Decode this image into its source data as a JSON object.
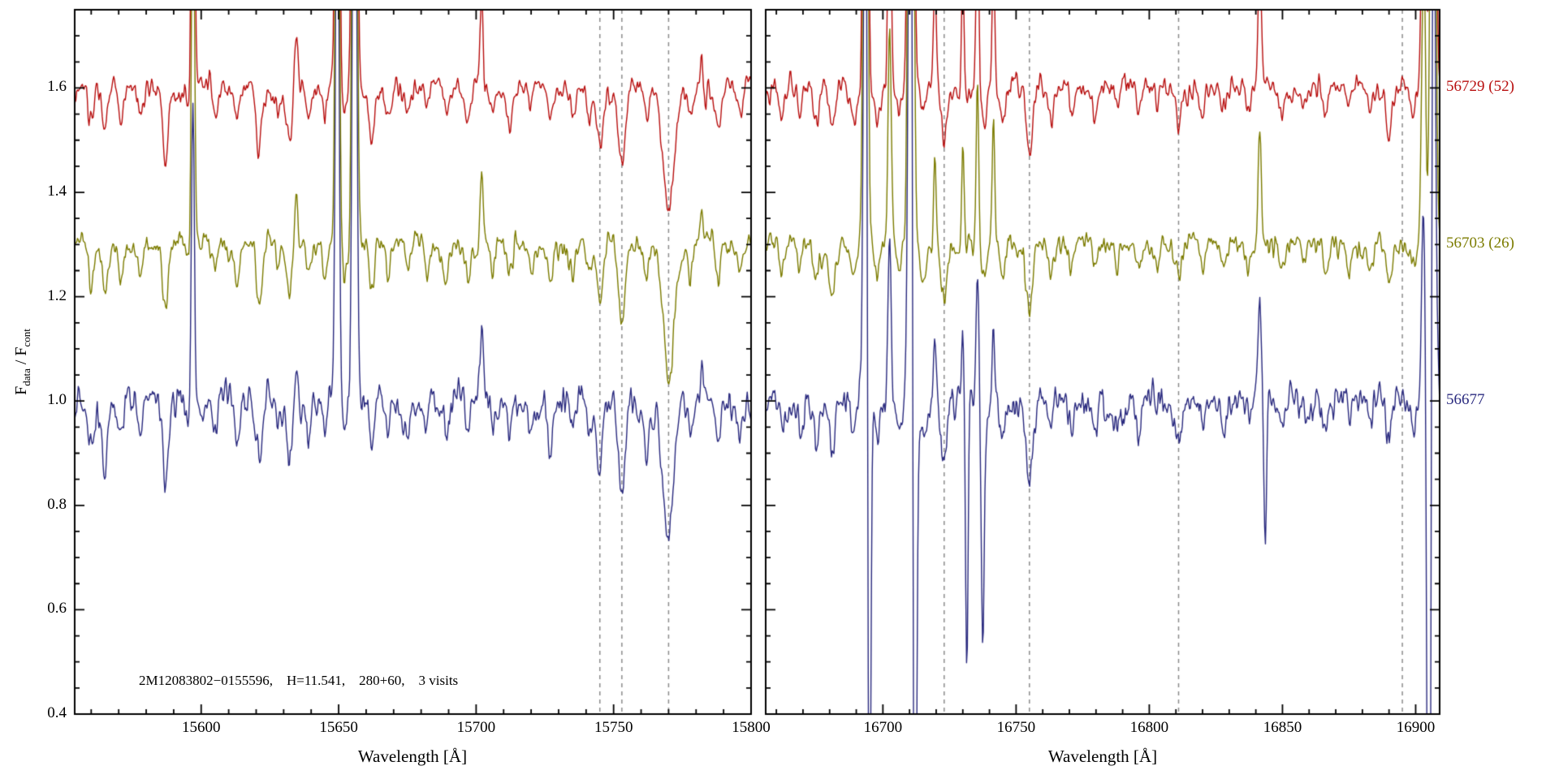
{
  "chart_data": {
    "type": "line",
    "title": "",
    "ylabel": "F_data / F_cont",
    "ylabel_parts": {
      "f1": "F",
      "sub1": "data",
      "sep": " / ",
      "f2": "F",
      "sub2": "cont"
    },
    "ylim": [
      0.4,
      1.75
    ],
    "ytick_values": [
      0.4,
      0.6,
      0.8,
      1.0,
      1.2,
      1.4,
      1.6
    ],
    "ytick_labels": [
      "0.4",
      "0.6",
      "0.8",
      "1.0",
      "1.2",
      "1.4",
      "1.6"
    ],
    "annotation": "2M12083802−0155596,    H=11.541,    280+60,    3 visits",
    "frame_color": "#000000",
    "dash_color": "#8c8c8c",
    "series": [
      {
        "label": "56729 (52)",
        "color": "#b80f0f",
        "offset": 1.6,
        "noise": 0.013,
        "line_scale": 0.95,
        "sky_scale": 1.0,
        "sky_negative": false
      },
      {
        "label": "56703 (26)",
        "color": "#7c7c00",
        "offset": 1.3,
        "noise": 0.013,
        "line_scale": 1.0,
        "sky_scale": 0.9,
        "sky_negative": false
      },
      {
        "label": "56677",
        "color": "#2a2a7f",
        "offset": 1.0,
        "noise": 0.02,
        "line_scale": 1.1,
        "sky_scale": 0.7,
        "sky_negative": true
      }
    ],
    "panels": [
      {
        "id": "left",
        "xlabel": "Wavelength [Å]",
        "xlim": [
          15554,
          15800
        ],
        "xtick_values": [
          15600,
          15650,
          15700,
          15750,
          15800
        ],
        "xtick_labels": [
          "15600",
          "15650",
          "15700",
          "15750",
          "15800"
        ],
        "minor_step": 10,
        "dashed_lines": [
          15745,
          15753,
          15770
        ],
        "absorption_lines": [
          [
            15560,
            0.08,
            0.9
          ],
          [
            15565,
            0.1,
            1.0
          ],
          [
            15571,
            0.07,
            0.8
          ],
          [
            15578,
            0.05,
            0.8
          ],
          [
            15587,
            0.13,
            1.1
          ],
          [
            15596,
            0.06,
            0.8
          ],
          [
            15605,
            0.06,
            0.8
          ],
          [
            15613,
            0.07,
            0.9
          ],
          [
            15621,
            0.11,
            1.0
          ],
          [
            15628,
            0.05,
            0.8
          ],
          [
            15632,
            0.1,
            1.0
          ],
          [
            15639,
            0.06,
            0.8
          ],
          [
            15645,
            0.06,
            0.8
          ],
          [
            15652,
            0.05,
            0.8
          ],
          [
            15662,
            0.09,
            0.9
          ],
          [
            15668,
            0.06,
            0.8
          ],
          [
            15675,
            0.05,
            0.8
          ],
          [
            15682,
            0.05,
            0.8
          ],
          [
            15689,
            0.06,
            0.9
          ],
          [
            15697,
            0.07,
            0.9
          ],
          [
            15706,
            0.05,
            0.8
          ],
          [
            15712,
            0.06,
            0.9
          ],
          [
            15720,
            0.05,
            0.8
          ],
          [
            15727,
            0.07,
            0.9
          ],
          [
            15735,
            0.05,
            0.8
          ],
          [
            15741,
            0.06,
            0.9
          ],
          [
            15745,
            0.12,
            1.1
          ],
          [
            15753,
            0.16,
            1.2
          ],
          [
            15762,
            0.07,
            0.9
          ],
          [
            15770,
            0.24,
            2.0
          ],
          [
            15778,
            0.06,
            0.9
          ],
          [
            15788,
            0.07,
            0.9
          ],
          [
            15796,
            0.06,
            0.9
          ]
        ],
        "emission_lines": [
          [
            15597,
            0.9,
            0.55
          ],
          [
            15634.5,
            0.1,
            0.5
          ],
          [
            15649.5,
            1.8,
            0.6
          ],
          [
            15655.8,
            2.2,
            0.7
          ],
          [
            15702,
            0.17,
            0.55
          ],
          [
            15782,
            0.07,
            0.5
          ]
        ],
        "negative_lines": []
      },
      {
        "id": "right",
        "xlabel": "Wavelength [Å]",
        "xlim": [
          16656,
          16909
        ],
        "xtick_values": [
          16700,
          16750,
          16800,
          16850,
          16900
        ],
        "xtick_labels": [
          "16700",
          "16750",
          "16800",
          "16850",
          "16900"
        ],
        "minor_step": 10,
        "dashed_lines": [
          16723,
          16755,
          16811,
          16895
        ],
        "absorption_lines": [
          [
            16662,
            0.06,
            0.9
          ],
          [
            16669,
            0.05,
            0.8
          ],
          [
            16675,
            0.07,
            0.9
          ],
          [
            16681,
            0.09,
            1.0
          ],
          [
            16689,
            0.07,
            0.9
          ],
          [
            16698,
            0.06,
            0.9
          ],
          [
            16706,
            0.05,
            0.8
          ],
          [
            16715,
            0.06,
            0.9
          ],
          [
            16723,
            0.11,
            1.1
          ],
          [
            16730,
            0.07,
            0.9
          ],
          [
            16738,
            0.08,
            1.0
          ],
          [
            16745,
            0.07,
            0.9
          ],
          [
            16755,
            0.13,
            1.2
          ],
          [
            16763,
            0.06,
            0.9
          ],
          [
            16771,
            0.05,
            0.8
          ],
          [
            16780,
            0.05,
            0.9
          ],
          [
            16788,
            0.04,
            0.8
          ],
          [
            16796,
            0.05,
            0.9
          ],
          [
            16803,
            0.04,
            0.8
          ],
          [
            16811,
            0.06,
            1.0
          ],
          [
            16820,
            0.04,
            0.8
          ],
          [
            16828,
            0.05,
            0.9
          ],
          [
            16837,
            0.04,
            0.8
          ],
          [
            16850,
            0.05,
            0.9
          ],
          [
            16858,
            0.04,
            0.8
          ],
          [
            16866,
            0.05,
            0.9
          ],
          [
            16875,
            0.04,
            0.8
          ],
          [
            16883,
            0.05,
            0.9
          ],
          [
            16890,
            0.07,
            1.0
          ],
          [
            16899,
            0.05,
            0.9
          ]
        ],
        "emission_lines": [
          [
            16693.5,
            2.0,
            0.7
          ],
          [
            16702.5,
            0.45,
            0.6
          ],
          [
            16710.5,
            2.5,
            0.8
          ],
          [
            16719.5,
            0.2,
            0.5
          ],
          [
            16730,
            0.3,
            0.5
          ],
          [
            16735.5,
            0.35,
            0.5
          ],
          [
            16741.5,
            0.25,
            0.5
          ],
          [
            16841.5,
            0.25,
            0.6
          ],
          [
            16903,
            0.6,
            0.7
          ],
          [
            16906.5,
            2.0,
            0.8
          ]
        ],
        "negative_lines": [
          [
            16694.8,
            1.2,
            0.6
          ],
          [
            16711.8,
            1.6,
            0.7
          ],
          [
            16731.5,
            0.5,
            0.5
          ],
          [
            16737.5,
            0.4,
            0.5
          ],
          [
            16843.5,
            0.3,
            0.45
          ],
          [
            16905.2,
            1.6,
            0.8
          ]
        ]
      }
    ]
  }
}
